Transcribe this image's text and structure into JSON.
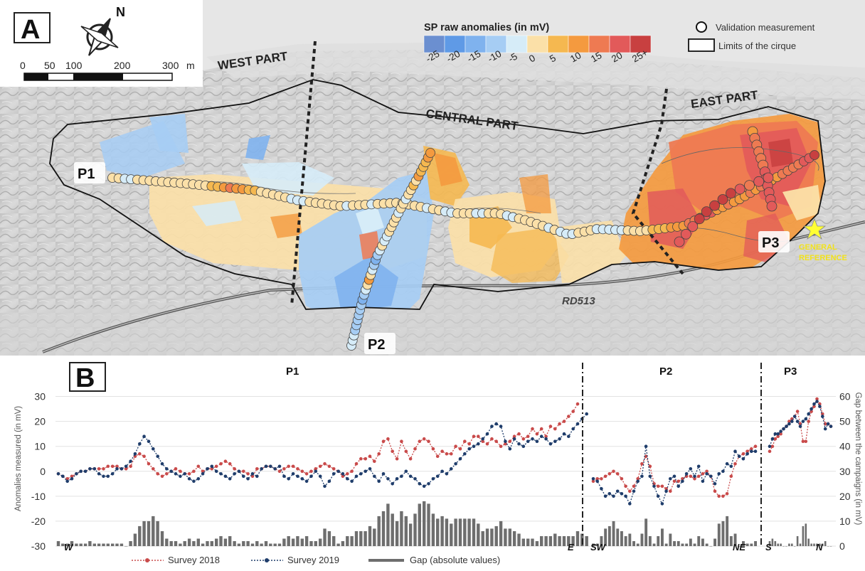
{
  "panel_a": {
    "letter": "A",
    "scalebar": {
      "ticks": [
        "0",
        "50",
        "100",
        "200",
        "300"
      ],
      "unit": "m"
    },
    "north_label": "N",
    "colorbar": {
      "title": "SP raw anomalies (in mV)",
      "ticks": [
        "-25",
        "-20",
        "-15",
        "-10",
        "-5",
        "0",
        "5",
        "10",
        "15",
        "20",
        "25+"
      ],
      "colors": [
        "#6b8fd0",
        "#5f9ae6",
        "#7fb2ee",
        "#a6cdf4",
        "#d6ecf8",
        "#fbe0a8",
        "#f5b850",
        "#f49a3f",
        "#ee7a52",
        "#e25a5a",
        "#c84040"
      ]
    },
    "legend": {
      "validation": "Validation measurement",
      "limits": "Limits of the cirque"
    },
    "parts": {
      "west": "WEST PART",
      "central": "CENTRAL PART",
      "east": "EAST PART"
    },
    "profiles": {
      "p1": "P1",
      "p2": "P2",
      "p3": "P3"
    },
    "reference_label_1": "GENERAL",
    "reference_label_2": "REFERENCE",
    "road": "RD513",
    "colors": {
      "hillshade": "#c9c9c9",
      "outline": "#111111",
      "reference_star": "#ffff33"
    }
  },
  "panel_b": {
    "letter": "B",
    "profiles": [
      "P1",
      "P2",
      "P3"
    ],
    "left_axis": {
      "title": "Anomalies measured (in mV)",
      "ticks": [
        -30,
        -20,
        -10,
        0,
        10,
        20,
        30
      ],
      "range": [
        -30,
        35
      ]
    },
    "right_axis": {
      "title": "Gap between the campaigns (in mV)",
      "ticks": [
        0,
        10,
        20,
        30,
        40,
        50,
        60
      ],
      "range": [
        0,
        65
      ]
    },
    "directions": {
      "p1_start": "W",
      "p1_end": "E",
      "p2_start": "SW",
      "p2_end": "NE",
      "p3_start": "S",
      "p3_end": "N"
    },
    "legend": {
      "s2018": "Survey 2018",
      "s2019": "Survey 2019",
      "gap": "Gap (absolute values)"
    },
    "colors": {
      "s2018": "#c94a4a",
      "s2019": "#1f3d6b",
      "gap": "#6e6e6e"
    }
  },
  "chart_data": {
    "type": "line",
    "title": "",
    "ylabel": "Anomalies measured (in mV)",
    "y2label": "Gap between the campaigns (in mV)",
    "ylim": [
      -30,
      35
    ],
    "y2lim": [
      0,
      65
    ],
    "grid": true,
    "legend_position": "bottom",
    "profiles": [
      {
        "name": "P1",
        "series": [
          {
            "name": "Survey 2018",
            "values": [
              -1,
              -2,
              -3,
              -2,
              -1,
              0,
              0,
              1,
              1,
              1,
              1,
              2,
              2,
              2,
              1,
              1,
              2,
              6,
              7,
              6,
              3,
              1,
              -1,
              -2,
              -1,
              0,
              1,
              0,
              -1,
              -1,
              0,
              2,
              0,
              1,
              1,
              2,
              3,
              4,
              3,
              1,
              0,
              0,
              -1,
              -2,
              1,
              1,
              2,
              2,
              1,
              0,
              1,
              2,
              2,
              1,
              0,
              -1,
              0,
              1,
              2,
              3,
              2,
              1,
              0,
              -2,
              -1,
              0,
              3,
              5,
              5,
              6,
              4,
              7,
              12,
              13,
              8,
              5,
              12,
              8,
              5,
              9,
              12,
              13,
              12,
              9,
              6,
              8,
              7,
              7,
              10,
              9,
              12,
              11,
              14,
              14,
              12,
              11,
              13,
              12,
              10,
              11,
              12,
              14,
              15,
              13,
              14,
              17,
              15,
              17,
              14,
              18,
              17,
              19,
              20,
              22,
              24,
              27
            ]
          },
          {
            "name": "Survey 2019",
            "values": [
              -1,
              -2,
              -4,
              -3,
              -1,
              0,
              0,
              1,
              1,
              -1,
              -2,
              -2,
              -1,
              1,
              1,
              2,
              4,
              7,
              11,
              14,
              12,
              9,
              6,
              3,
              1,
              0,
              -1,
              -2,
              -1,
              -3,
              -4,
              -3,
              -1,
              1,
              2,
              0,
              -1,
              -2,
              -3,
              -1,
              0,
              -2,
              -3,
              -1,
              -2,
              1,
              2,
              2,
              1,
              2,
              -2,
              -3,
              -1,
              -2,
              -3,
              -4,
              -2,
              0,
              -2,
              -6,
              -4,
              -1,
              0,
              -1,
              -3,
              -4,
              -2,
              -1,
              0,
              1,
              -2,
              -4,
              -1,
              -3,
              -5,
              -3,
              -2,
              0,
              -2,
              -3,
              -5,
              -6,
              -5,
              -3,
              -2,
              0,
              -1,
              1,
              3,
              5,
              7,
              9,
              10,
              11,
              13,
              15,
              18,
              19,
              18,
              12,
              9,
              13,
              11,
              10,
              12,
              13,
              12,
              14,
              13,
              11,
              12,
              13,
              15,
              14,
              17,
              19,
              21,
              23
            ]
          },
          {
            "name": "Gap (absolute values)",
            "values": [
              2,
              1,
              1,
              2,
              1,
              1,
              1,
              2,
              1,
              1,
              1,
              1,
              1,
              1,
              1,
              0,
              2,
              5,
              8,
              10,
              10,
              12,
              10,
              6,
              3,
              2,
              2,
              1,
              2,
              3,
              2,
              3,
              1,
              2,
              2,
              3,
              4,
              3,
              4,
              2,
              1,
              2,
              2,
              1,
              2,
              1,
              2,
              1,
              1,
              1,
              3,
              4,
              3,
              4,
              3,
              4,
              2,
              2,
              3,
              7,
              6,
              4,
              1,
              2,
              4,
              4,
              6,
              6,
              6,
              8,
              7,
              12,
              14,
              17,
              13,
              10,
              14,
              12,
              9,
              13,
              17,
              18,
              17,
              13,
              11,
              12,
              11,
              9,
              11,
              11,
              11,
              11,
              11,
              9,
              6,
              7,
              7,
              8,
              10,
              7,
              7,
              6,
              5,
              3,
              3,
              3,
              2,
              4,
              4,
              4,
              5,
              4,
              4,
              4,
              4,
              6,
              5,
              4
            ]
          }
        ]
      },
      {
        "name": "P2",
        "series": [
          {
            "name": "Survey 2018",
            "values": [
              -4,
              -3,
              -3,
              -2,
              -1,
              0,
              -1,
              -3,
              -6,
              -8,
              -6,
              -3,
              3,
              6,
              2,
              -5,
              -6,
              -6,
              -7,
              -8,
              -4,
              -4,
              -3,
              -2,
              -2,
              -3,
              -2,
              -1,
              0,
              -2,
              -8,
              -10,
              -10,
              -9,
              -2,
              3,
              6,
              7,
              8,
              9,
              10
            ]
          },
          {
            "name": "Survey 2019",
            "values": [
              -3,
              -4,
              -7,
              -10,
              -9,
              -10,
              -8,
              -9,
              -10,
              -13,
              -8,
              -4,
              -2,
              10,
              -2,
              -6,
              -10,
              -13,
              -8,
              -3,
              -2,
              -6,
              -4,
              -1,
              1,
              -2,
              2,
              -4,
              -1,
              -2,
              -5,
              -1,
              0,
              3,
              2,
              8,
              6,
              5,
              7,
              8,
              8
            ]
          },
          {
            "name": "Gap (absolute values)",
            "values": [
              1,
              1,
              4,
              7,
              8,
              10,
              7,
              6,
              4,
              5,
              2,
              1,
              5,
              11,
              4,
              1,
              4,
              7,
              1,
              5,
              2,
              2,
              1,
              1,
              3,
              1,
              4,
              3,
              1,
              0,
              3,
              9,
              10,
              12,
              4,
              5,
              0,
              2,
              1,
              1,
              2
            ]
          }
        ]
      },
      {
        "name": "P3",
        "series": [
          {
            "name": "Survey 2018",
            "values": [
              8,
              10,
              13,
              14,
              15,
              17,
              18,
              20,
              21,
              22,
              24,
              19,
              12,
              12,
              20,
              24,
              26,
              29,
              27,
              23,
              19,
              19,
              18
            ]
          },
          {
            "name": "Survey 2019",
            "values": [
              10,
              13,
              15,
              15,
              16,
              17,
              18,
              19,
              20,
              22,
              20,
              18,
              20,
              21,
              23,
              25,
              27,
              28,
              26,
              22,
              17,
              19,
              18
            ]
          },
          {
            "name": "Gap (absolute values)",
            "values": [
              2,
              3,
              2,
              1,
              1,
              0,
              0,
              1,
              1,
              0,
              4,
              1,
              8,
              9,
              3,
              1,
              1,
              1,
              1,
              1,
              2,
              0,
              0
            ]
          }
        ]
      }
    ],
    "directions": [
      "W",
      "E",
      "SW",
      "NE",
      "S",
      "N"
    ]
  }
}
